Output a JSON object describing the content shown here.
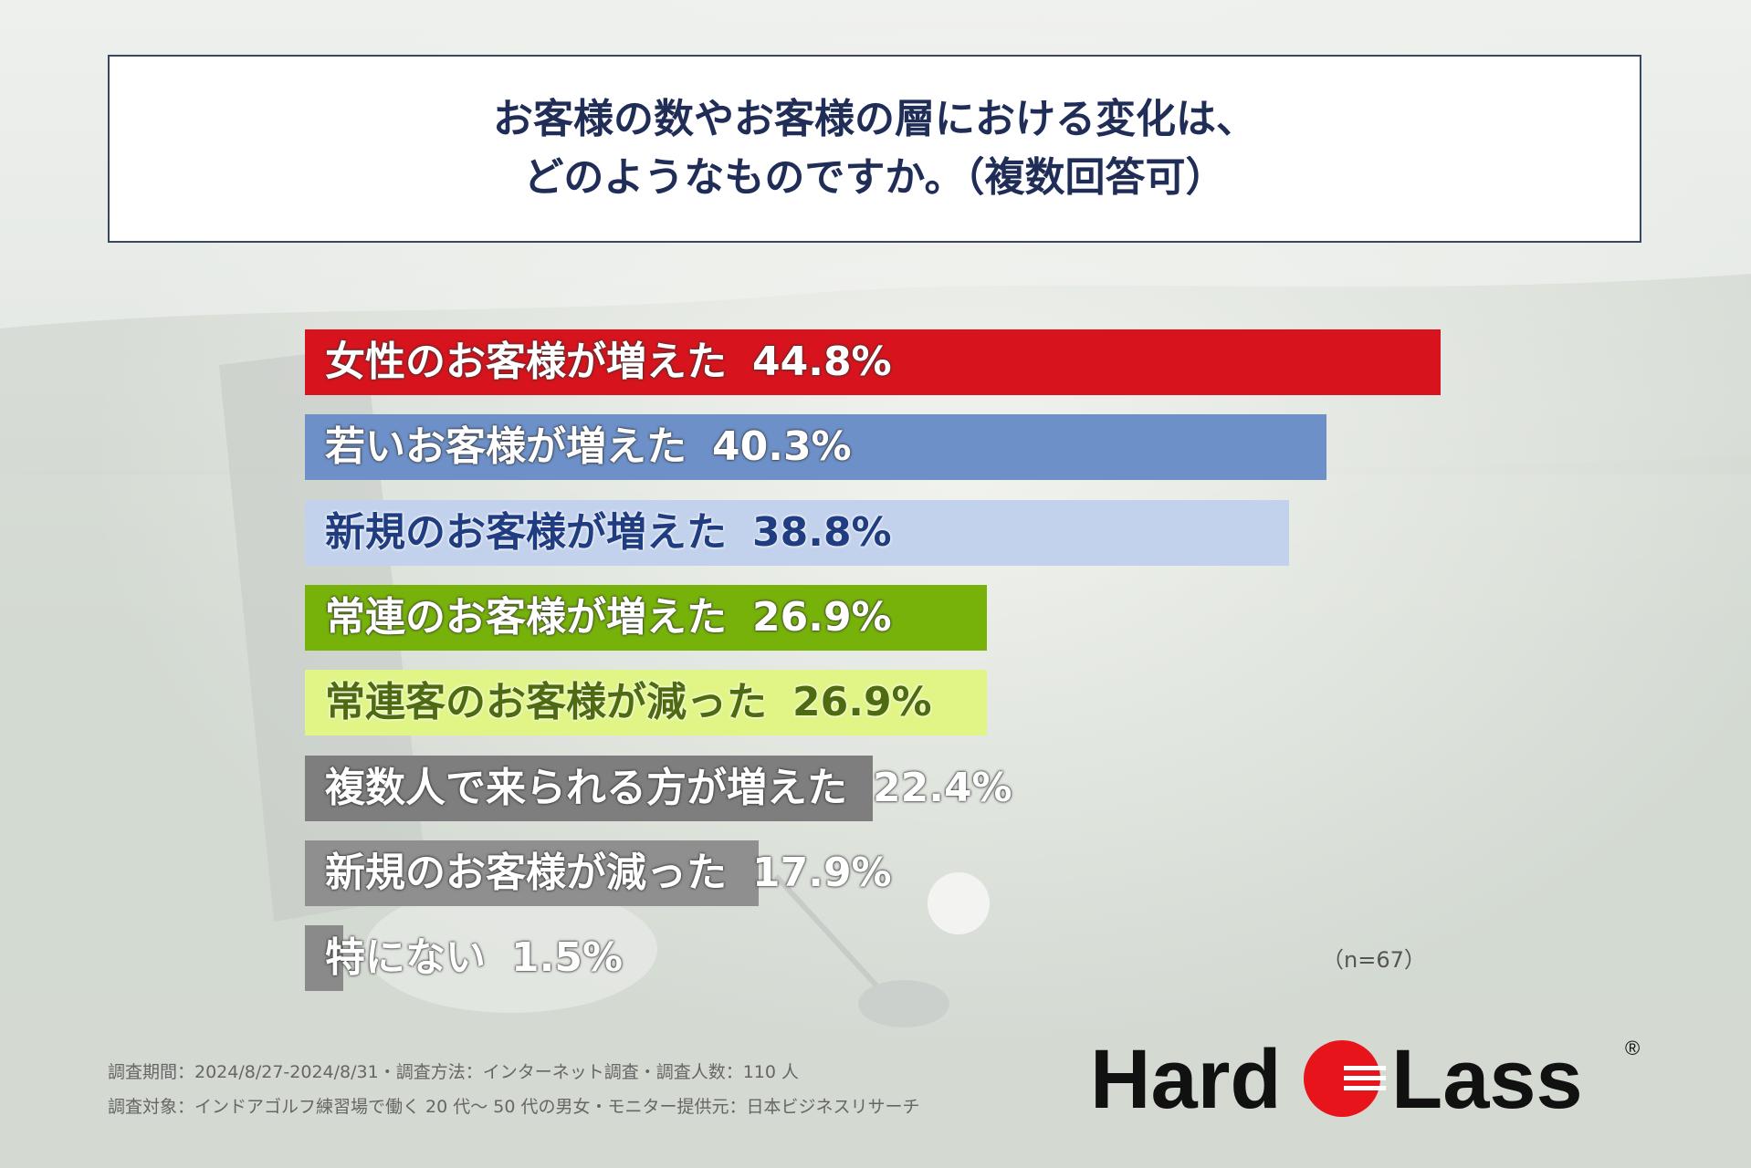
{
  "title_lines": [
    "お客様の数やお客様の層における変化は、",
    "どのようなものですか。（複数回答可）"
  ],
  "chart_data": {
    "type": "bar",
    "orientation": "horizontal",
    "title": "お客様の数やお客様の層における変化は、どのようなものですか。（複数回答可）",
    "categories": [
      "女性のお客様が増えた",
      "若いお客様が増えた",
      "新規のお客様が増えた",
      "常連のお客様が増えた",
      "常連客のお客様が減った",
      "複数人で来られる方が増えた",
      "新規のお客様が減った",
      "特にない"
    ],
    "values": [
      44.8,
      40.3,
      38.8,
      26.9,
      26.9,
      22.4,
      17.9,
      1.5
    ],
    "value_labels": [
      "44.8%",
      "40.3%",
      "38.8%",
      "26.9%",
      "26.9%",
      "22.4%",
      "17.9%",
      "1.5%"
    ],
    "colors": [
      "#d7141d",
      "#6d90c8",
      "#c3d2ec",
      "#77b20b",
      "#e0f585",
      "#7e7e7e",
      "#8f8f8f",
      "#8a8a8a"
    ],
    "label_colors": [
      "#ffffff",
      "#ffffff",
      "#1f3d80",
      "#ffffff",
      "#4f6b12",
      "#ffffff",
      "#ffffff",
      "#ffffff"
    ],
    "xlim": [
      0,
      45
    ],
    "grid": false,
    "legend": "none"
  },
  "sample_note": "（n=67）",
  "footer": {
    "line1": "調査期間：2024/8/27-2024/8/31・調査方法：インターネット調査・調査人数：110 人",
    "line2": "調査対象：インドアゴルフ練習場で働く 20 代～ 50 代の男女・モニター提供元：日本ビジネスリサーチ"
  },
  "logo": {
    "text_left": "Hard",
    "text_right": "Lass",
    "mark": "®",
    "accent": "#e8141c"
  }
}
